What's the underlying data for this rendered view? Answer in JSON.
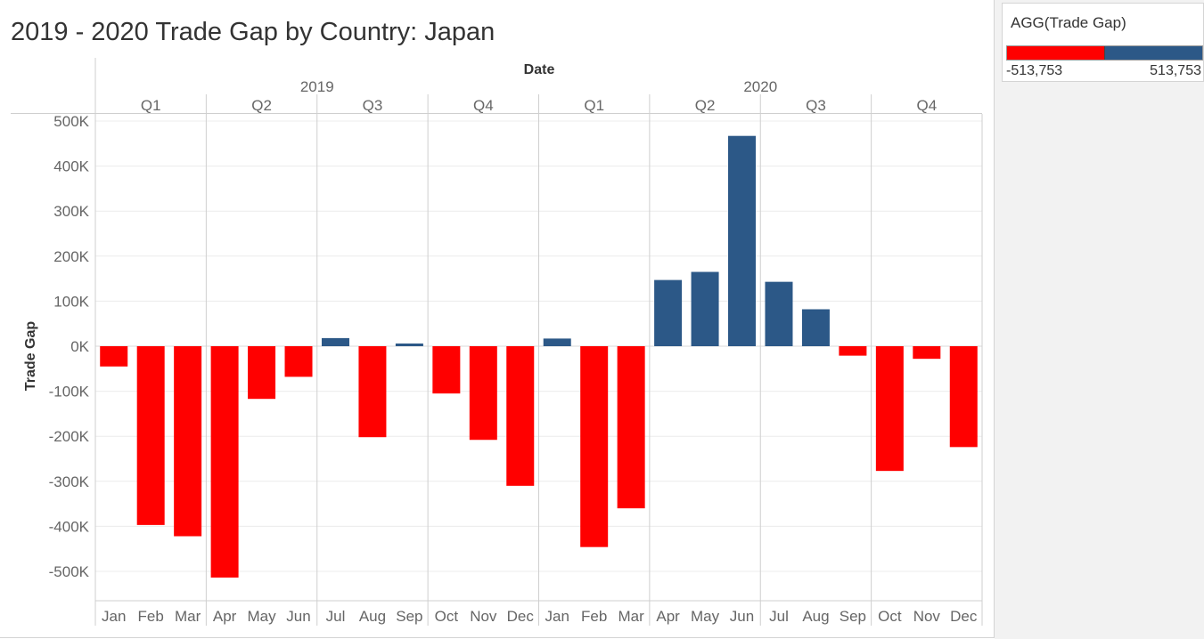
{
  "title": "2019 - 2020 Trade Gap by Country: Japan",
  "legend": {
    "title": "AGG(Trade Gap)",
    "min_label": "-513,753",
    "max_label": "513,753",
    "negative_color": "#ff0000",
    "positive_color": "#2c5887"
  },
  "chart_data": {
    "type": "bar",
    "column_header": "Date",
    "ylabel": "Trade Gap",
    "ylim": [
      -570000,
      520000
    ],
    "y_ticks": [
      500000,
      400000,
      300000,
      200000,
      100000,
      0,
      -100000,
      -200000,
      -300000,
      -400000,
      -500000
    ],
    "y_tick_labels": [
      "500K",
      "400K",
      "300K",
      "200K",
      "100K",
      "0K",
      "-100K",
      "-200K",
      "-300K",
      "-400K",
      "-500K"
    ],
    "grid": true,
    "years": [
      {
        "label": "2019",
        "months": 12
      },
      {
        "label": "2020",
        "months": 12
      }
    ],
    "quarters": [
      "Q1",
      "Q2",
      "Q3",
      "Q4",
      "Q1",
      "Q2",
      "Q3",
      "Q4"
    ],
    "categories": [
      "Jan",
      "Feb",
      "Mar",
      "Apr",
      "May",
      "Jun",
      "Jul",
      "Aug",
      "Sep",
      "Oct",
      "Nov",
      "Dec",
      "Jan",
      "Feb",
      "Mar",
      "Apr",
      "May",
      "Jun",
      "Jul",
      "Aug",
      "Sep",
      "Oct",
      "Nov",
      "Dec"
    ],
    "values": [
      -45000,
      -397000,
      -422000,
      -513753,
      -117000,
      -68000,
      18000,
      -202000,
      6000,
      -105000,
      -208000,
      -310000,
      17000,
      -446000,
      -360000,
      147000,
      165000,
      467000,
      143000,
      82000,
      -21000,
      -277000,
      -28000,
      -224000
    ]
  }
}
